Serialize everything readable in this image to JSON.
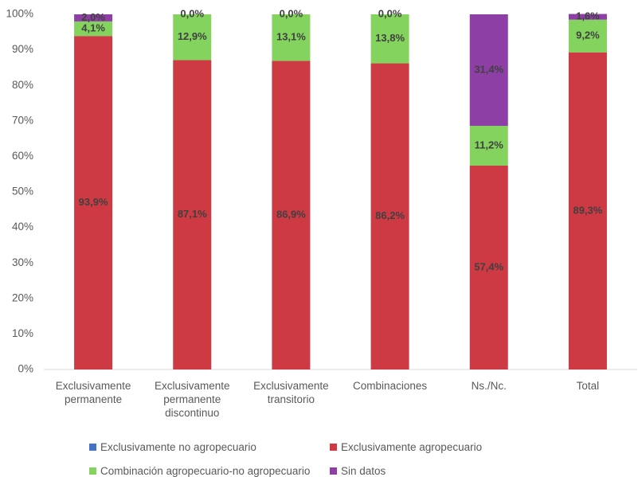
{
  "chart_data": {
    "type": "stacked-bar",
    "categories": [
      "Exclusivamente permanente",
      "Exclusivamente permanente discontinuo",
      "Exclusivamente transitorio",
      "Combinaciones",
      "Ns./Nc.",
      "Total"
    ],
    "series": [
      {
        "name": "Exclusivamente no agropecuario",
        "color": "#4472c4",
        "values": [
          0,
          0,
          0,
          0,
          0,
          0
        ]
      },
      {
        "name": "Exclusivamente agropecuario",
        "color": "#cd3a43",
        "values": [
          93.9,
          87.1,
          86.9,
          86.2,
          57.4,
          89.3
        ],
        "value_labels": [
          "93,9%",
          "87,1%",
          "86,9%",
          "86,2%",
          "57,4%",
          "89,3%"
        ]
      },
      {
        "name": "Combinación agropecuario-no agropecuario",
        "color": "#83d35e",
        "values": [
          4.1,
          12.9,
          13.1,
          13.8,
          11.2,
          9.2
        ],
        "value_labels": [
          "4,1%",
          "12,9%",
          "13,1%",
          "13,8%",
          "11,2%",
          "9,2%"
        ]
      },
      {
        "name": "Sin datos",
        "color": "#8e3fa6",
        "values": [
          2.0,
          0.0,
          0.0,
          0.0,
          31.4,
          1.6
        ],
        "value_labels": [
          "2,0%",
          "0,0%",
          "0,0%",
          "0,0%",
          "31,4%",
          "1,6%"
        ]
      }
    ],
    "ylim": [
      0,
      100
    ],
    "yticks": [
      {
        "value": 0,
        "label": "0%"
      },
      {
        "value": 10,
        "label": "10%"
      },
      {
        "value": 20,
        "label": "20%"
      },
      {
        "value": 30,
        "label": "30%"
      },
      {
        "value": 40,
        "label": "40%"
      },
      {
        "value": 50,
        "label": "50%"
      },
      {
        "value": 60,
        "label": "60%"
      },
      {
        "value": 70,
        "label": "70%"
      },
      {
        "value": 80,
        "label": "80%"
      },
      {
        "value": 90,
        "label": "90%"
      },
      {
        "value": 100,
        "label": "100%"
      }
    ],
    "grid": false,
    "legend": "bottom"
  }
}
